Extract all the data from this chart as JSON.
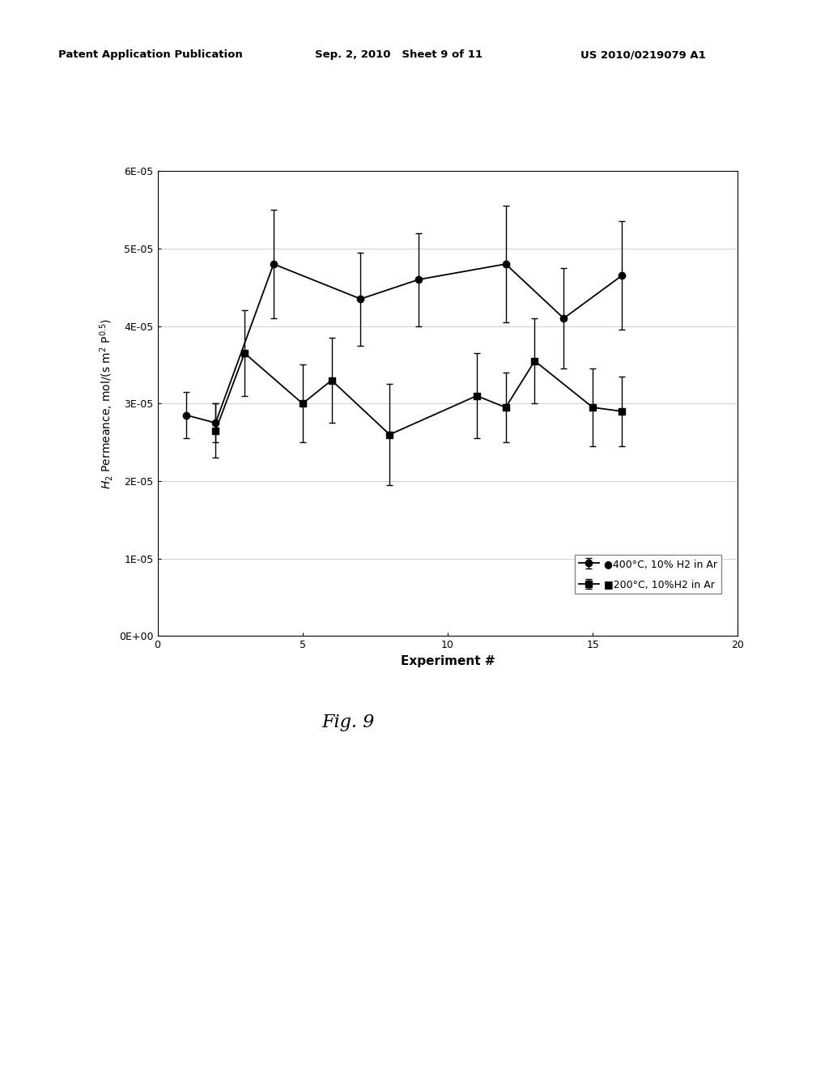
{
  "header_left": "Patent Application Publication",
  "header_mid": "Sep. 2, 2010   Sheet 9 of 11",
  "header_right": "US 2010/0219079 A1",
  "fig_label": "Fig. 9",
  "xlabel": "Experiment #",
  "ylabel_line1": "H₂ Permeance, mol/(s m² P°²⁵)",
  "xlim": [
    0,
    20
  ],
  "ylim": [
    0,
    6e-05
  ],
  "yticks": [
    0,
    1e-05,
    2e-05,
    3e-05,
    4e-05,
    5e-05,
    6e-05
  ],
  "ytick_labels": [
    "0E+00",
    "1E-05",
    "2E-05",
    "3E-05",
    "4E-05",
    "5E-05",
    "6E-05"
  ],
  "xticks": [
    0,
    5,
    10,
    15,
    20
  ],
  "xtick_labels": [
    "0",
    "5",
    "10",
    "15",
    "20"
  ],
  "series1_label": "●400°C, 10% H2 in Ar",
  "series2_label": "■200°C, 10%H2 in Ar",
  "series1_x": [
    1,
    2,
    4,
    7,
    9,
    12,
    14,
    16
  ],
  "series1_y": [
    2.85e-05,
    2.75e-05,
    4.8e-05,
    4.35e-05,
    4.6e-05,
    4.8e-05,
    4.1e-05,
    4.65e-05
  ],
  "series1_yerr": [
    3e-06,
    2.5e-06,
    7e-06,
    6e-06,
    6e-06,
    7.5e-06,
    6.5e-06,
    7e-06
  ],
  "series2_x": [
    2,
    3,
    5,
    6,
    8,
    11,
    12,
    13,
    15,
    16
  ],
  "series2_y": [
    2.65e-05,
    3.65e-05,
    3e-05,
    3.3e-05,
    2.6e-05,
    3.1e-05,
    2.95e-05,
    3.55e-05,
    2.95e-05,
    2.9e-05
  ],
  "series2_yerr": [
    3.5e-06,
    5.5e-06,
    5e-06,
    5.5e-06,
    6.5e-06,
    5.5e-06,
    4.5e-06,
    5.5e-06,
    5e-06,
    4.5e-06
  ],
  "background_color": "#ffffff"
}
